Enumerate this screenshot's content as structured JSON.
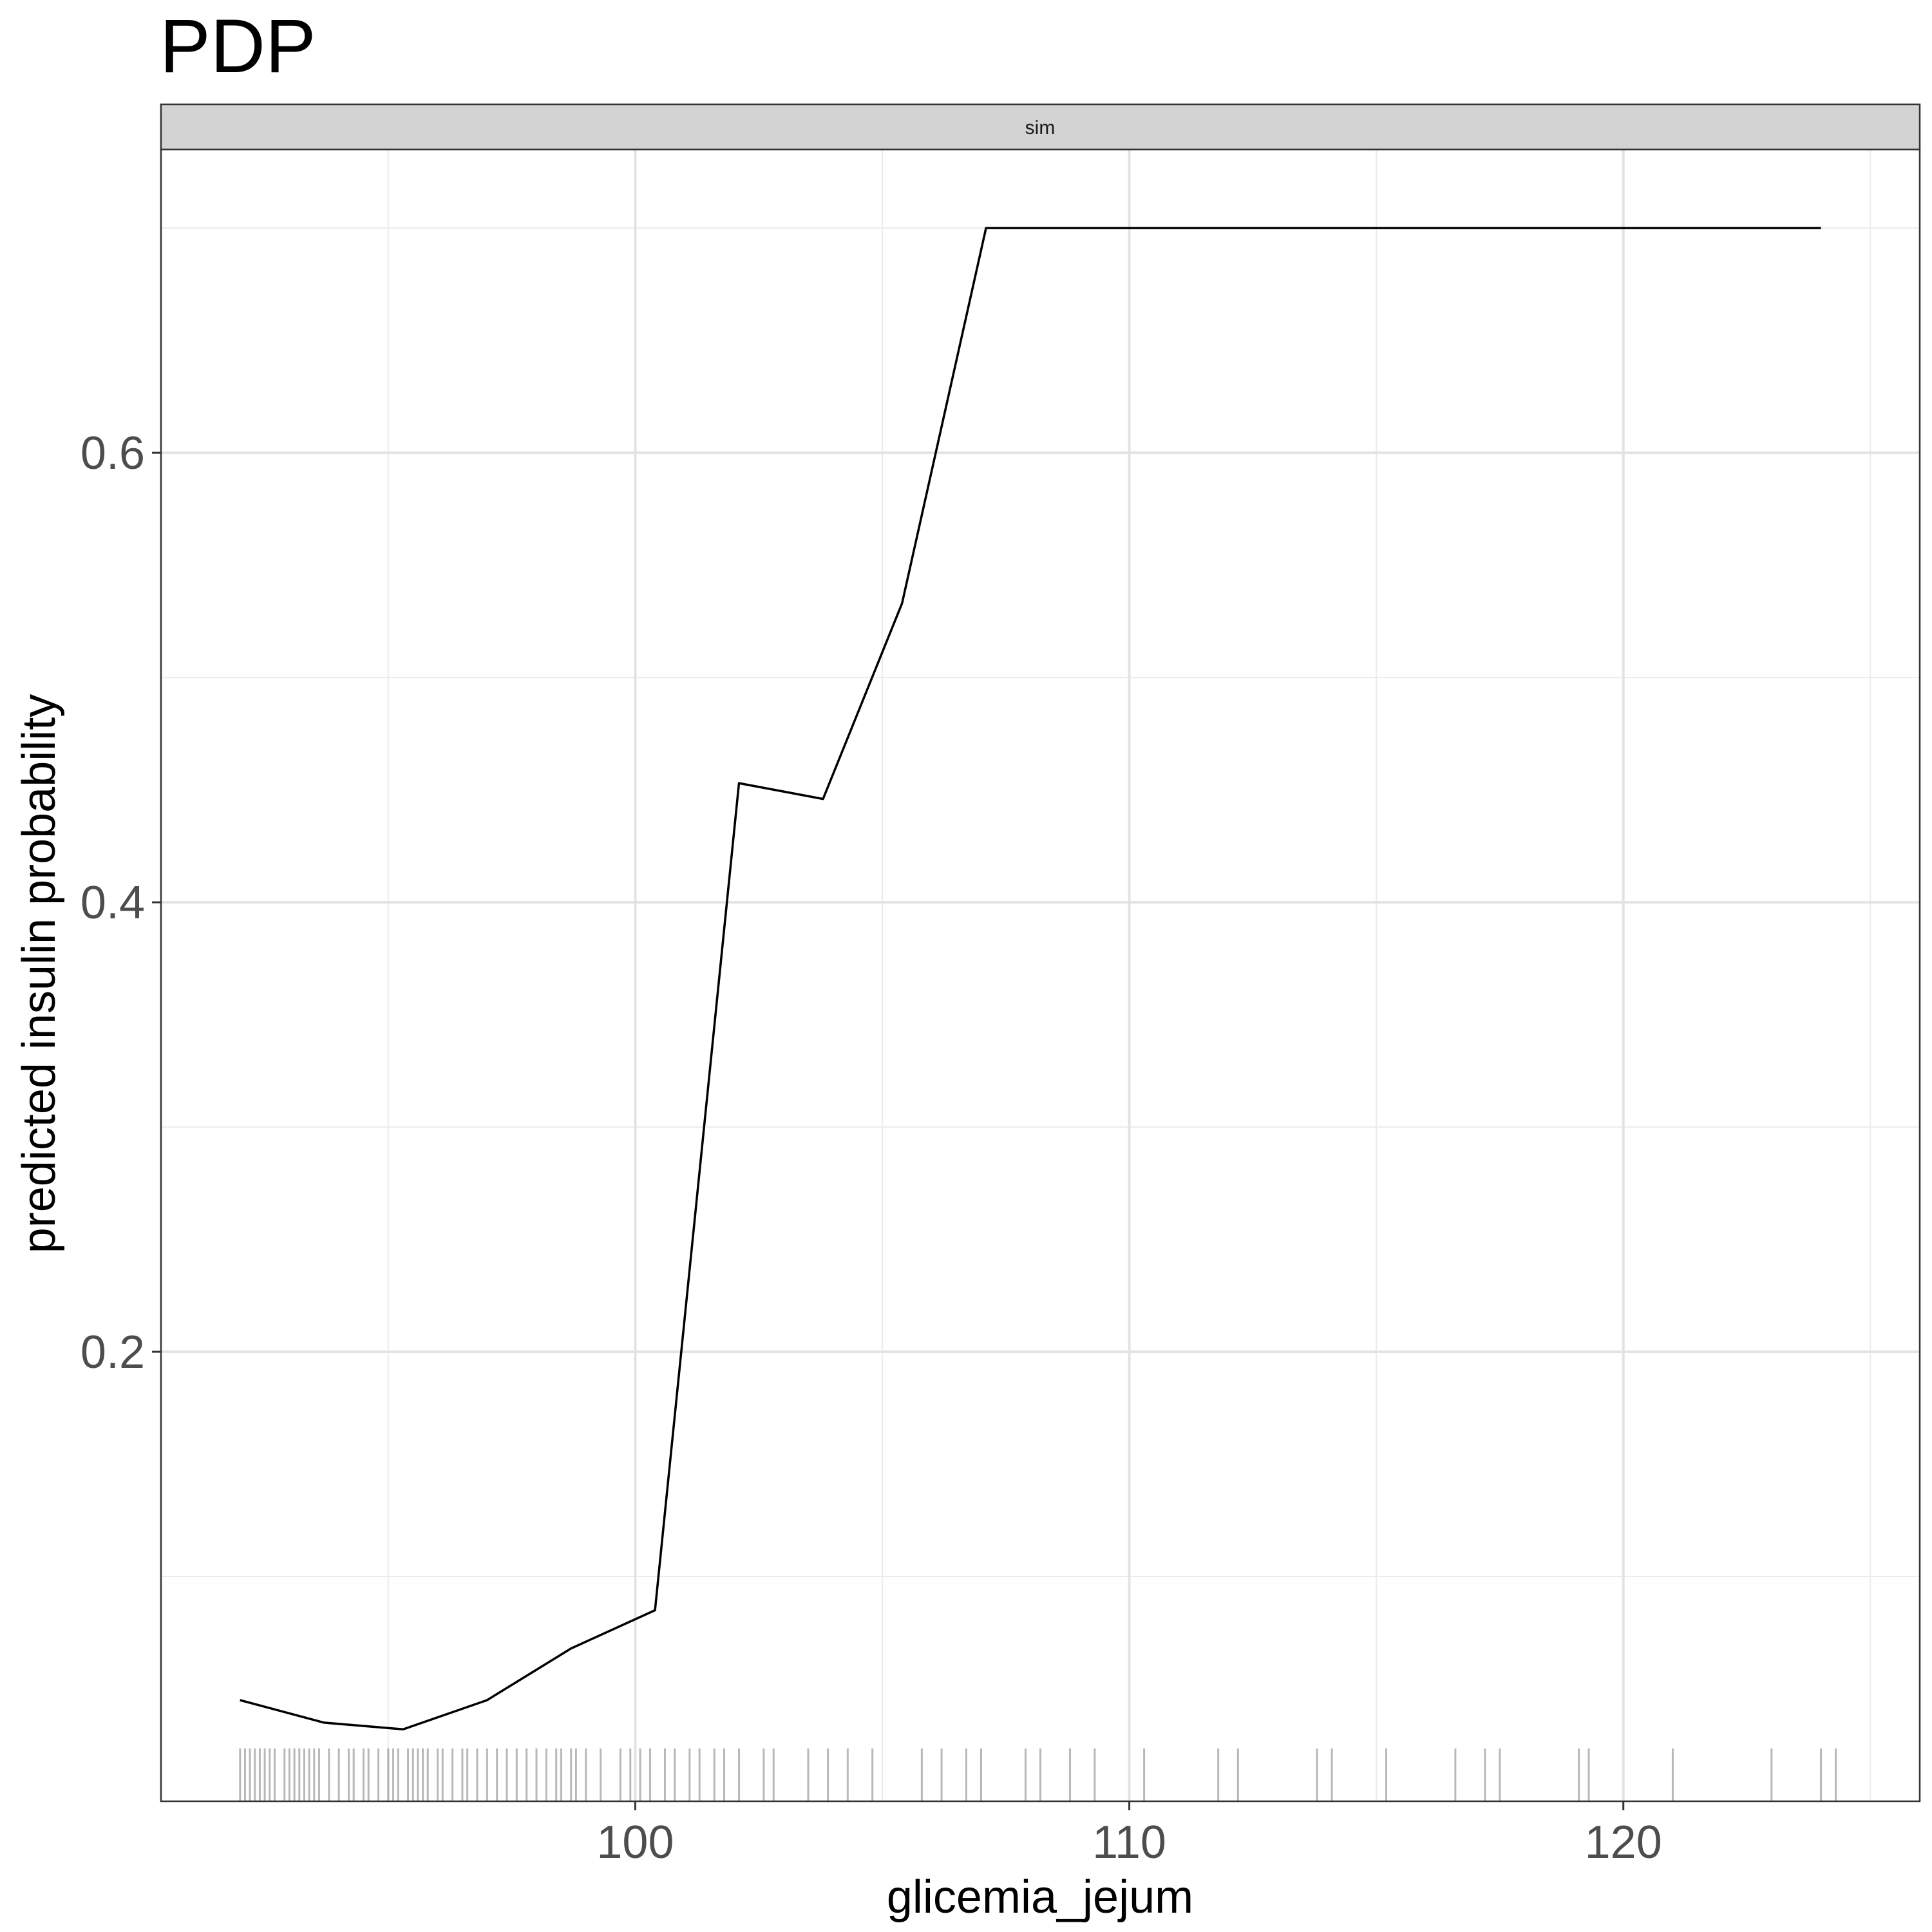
{
  "chart_data": {
    "type": "line",
    "title": "PDP",
    "facet_label": "sim",
    "xlabel": "glicemia_jejum",
    "ylabel": "predicted insulin probability",
    "xlim": [
      90.4,
      126.0
    ],
    "ylim": [
      0.0,
      0.735
    ],
    "x_ticks": [
      100,
      110,
      120
    ],
    "x_tick_labels": [
      "100",
      "110",
      "120"
    ],
    "y_ticks": [
      0.2,
      0.4,
      0.6
    ],
    "y_tick_labels": [
      "0.2",
      "0.4",
      "0.6"
    ],
    "x_minor_gridlines": [
      95,
      105,
      115,
      125
    ],
    "y_minor_gridlines": [
      0.1,
      0.3,
      0.5,
      0.7
    ],
    "grid": true,
    "line_color": "#000000",
    "x": [
      92.0,
      93.7,
      95.3,
      97.0,
      98.7,
      100.4,
      102.1,
      103.8,
      105.4,
      107.1,
      124.0
    ],
    "y": [
      0.045,
      0.035,
      0.032,
      0.045,
      0.068,
      0.085,
      0.453,
      0.446,
      0.533,
      0.7,
      0.7
    ],
    "rug": [
      92.0,
      92.1,
      92.2,
      92.3,
      92.4,
      92.5,
      92.6,
      92.7,
      92.9,
      93.0,
      93.1,
      93.2,
      93.3,
      93.4,
      93.5,
      93.6,
      93.8,
      94.0,
      94.2,
      94.3,
      94.5,
      94.6,
      94.8,
      95.0,
      95.1,
      95.2,
      95.4,
      95.5,
      95.6,
      95.7,
      95.8,
      96.0,
      96.1,
      96.3,
      96.5,
      96.6,
      96.8,
      97.0,
      97.2,
      97.4,
      97.6,
      97.8,
      98.0,
      98.2,
      98.4,
      98.5,
      98.7,
      98.8,
      99.0,
      99.3,
      99.7,
      99.9,
      100.1,
      100.3,
      100.6,
      100.8,
      101.1,
      101.3,
      101.6,
      101.8,
      102.1,
      102.6,
      102.8,
      103.5,
      103.9,
      104.3,
      104.8,
      105.8,
      106.2,
      106.7,
      107.0,
      107.9,
      108.2,
      108.8,
      109.3,
      110.3,
      111.8,
      112.2,
      113.8,
      114.1,
      115.2,
      116.6,
      117.2,
      117.5,
      119.1,
      119.3,
      121.0,
      123.0,
      124.0,
      124.3
    ]
  }
}
